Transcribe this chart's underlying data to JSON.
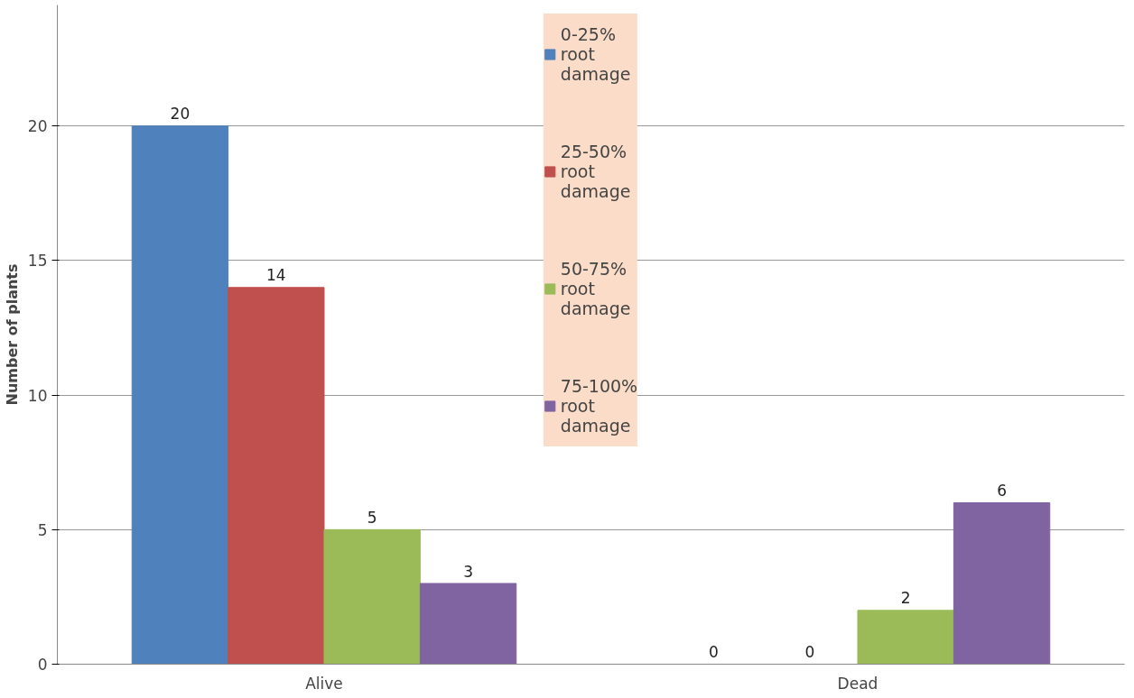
{
  "chart_data": {
    "type": "bar",
    "ylabel": "Number of plants",
    "categories": [
      "Alive",
      "Dead"
    ],
    "series": [
      {
        "name": "0-25% root damage",
        "color": "#4f81bd",
        "values": [
          20,
          0
        ]
      },
      {
        "name": "25-50% root damage",
        "color": "#c0504d",
        "values": [
          14,
          0
        ]
      },
      {
        "name": "50-75% root damage",
        "color": "#9bbb59",
        "values": [
          5,
          2
        ]
      },
      {
        "name": "75-100% root damage",
        "color": "#8064a2",
        "values": [
          3,
          6
        ]
      }
    ],
    "ylim": [
      0,
      24.5
    ],
    "yticks": [
      0,
      5,
      10,
      15,
      20
    ],
    "grid": "y",
    "legend": "top",
    "data_labels": true
  }
}
